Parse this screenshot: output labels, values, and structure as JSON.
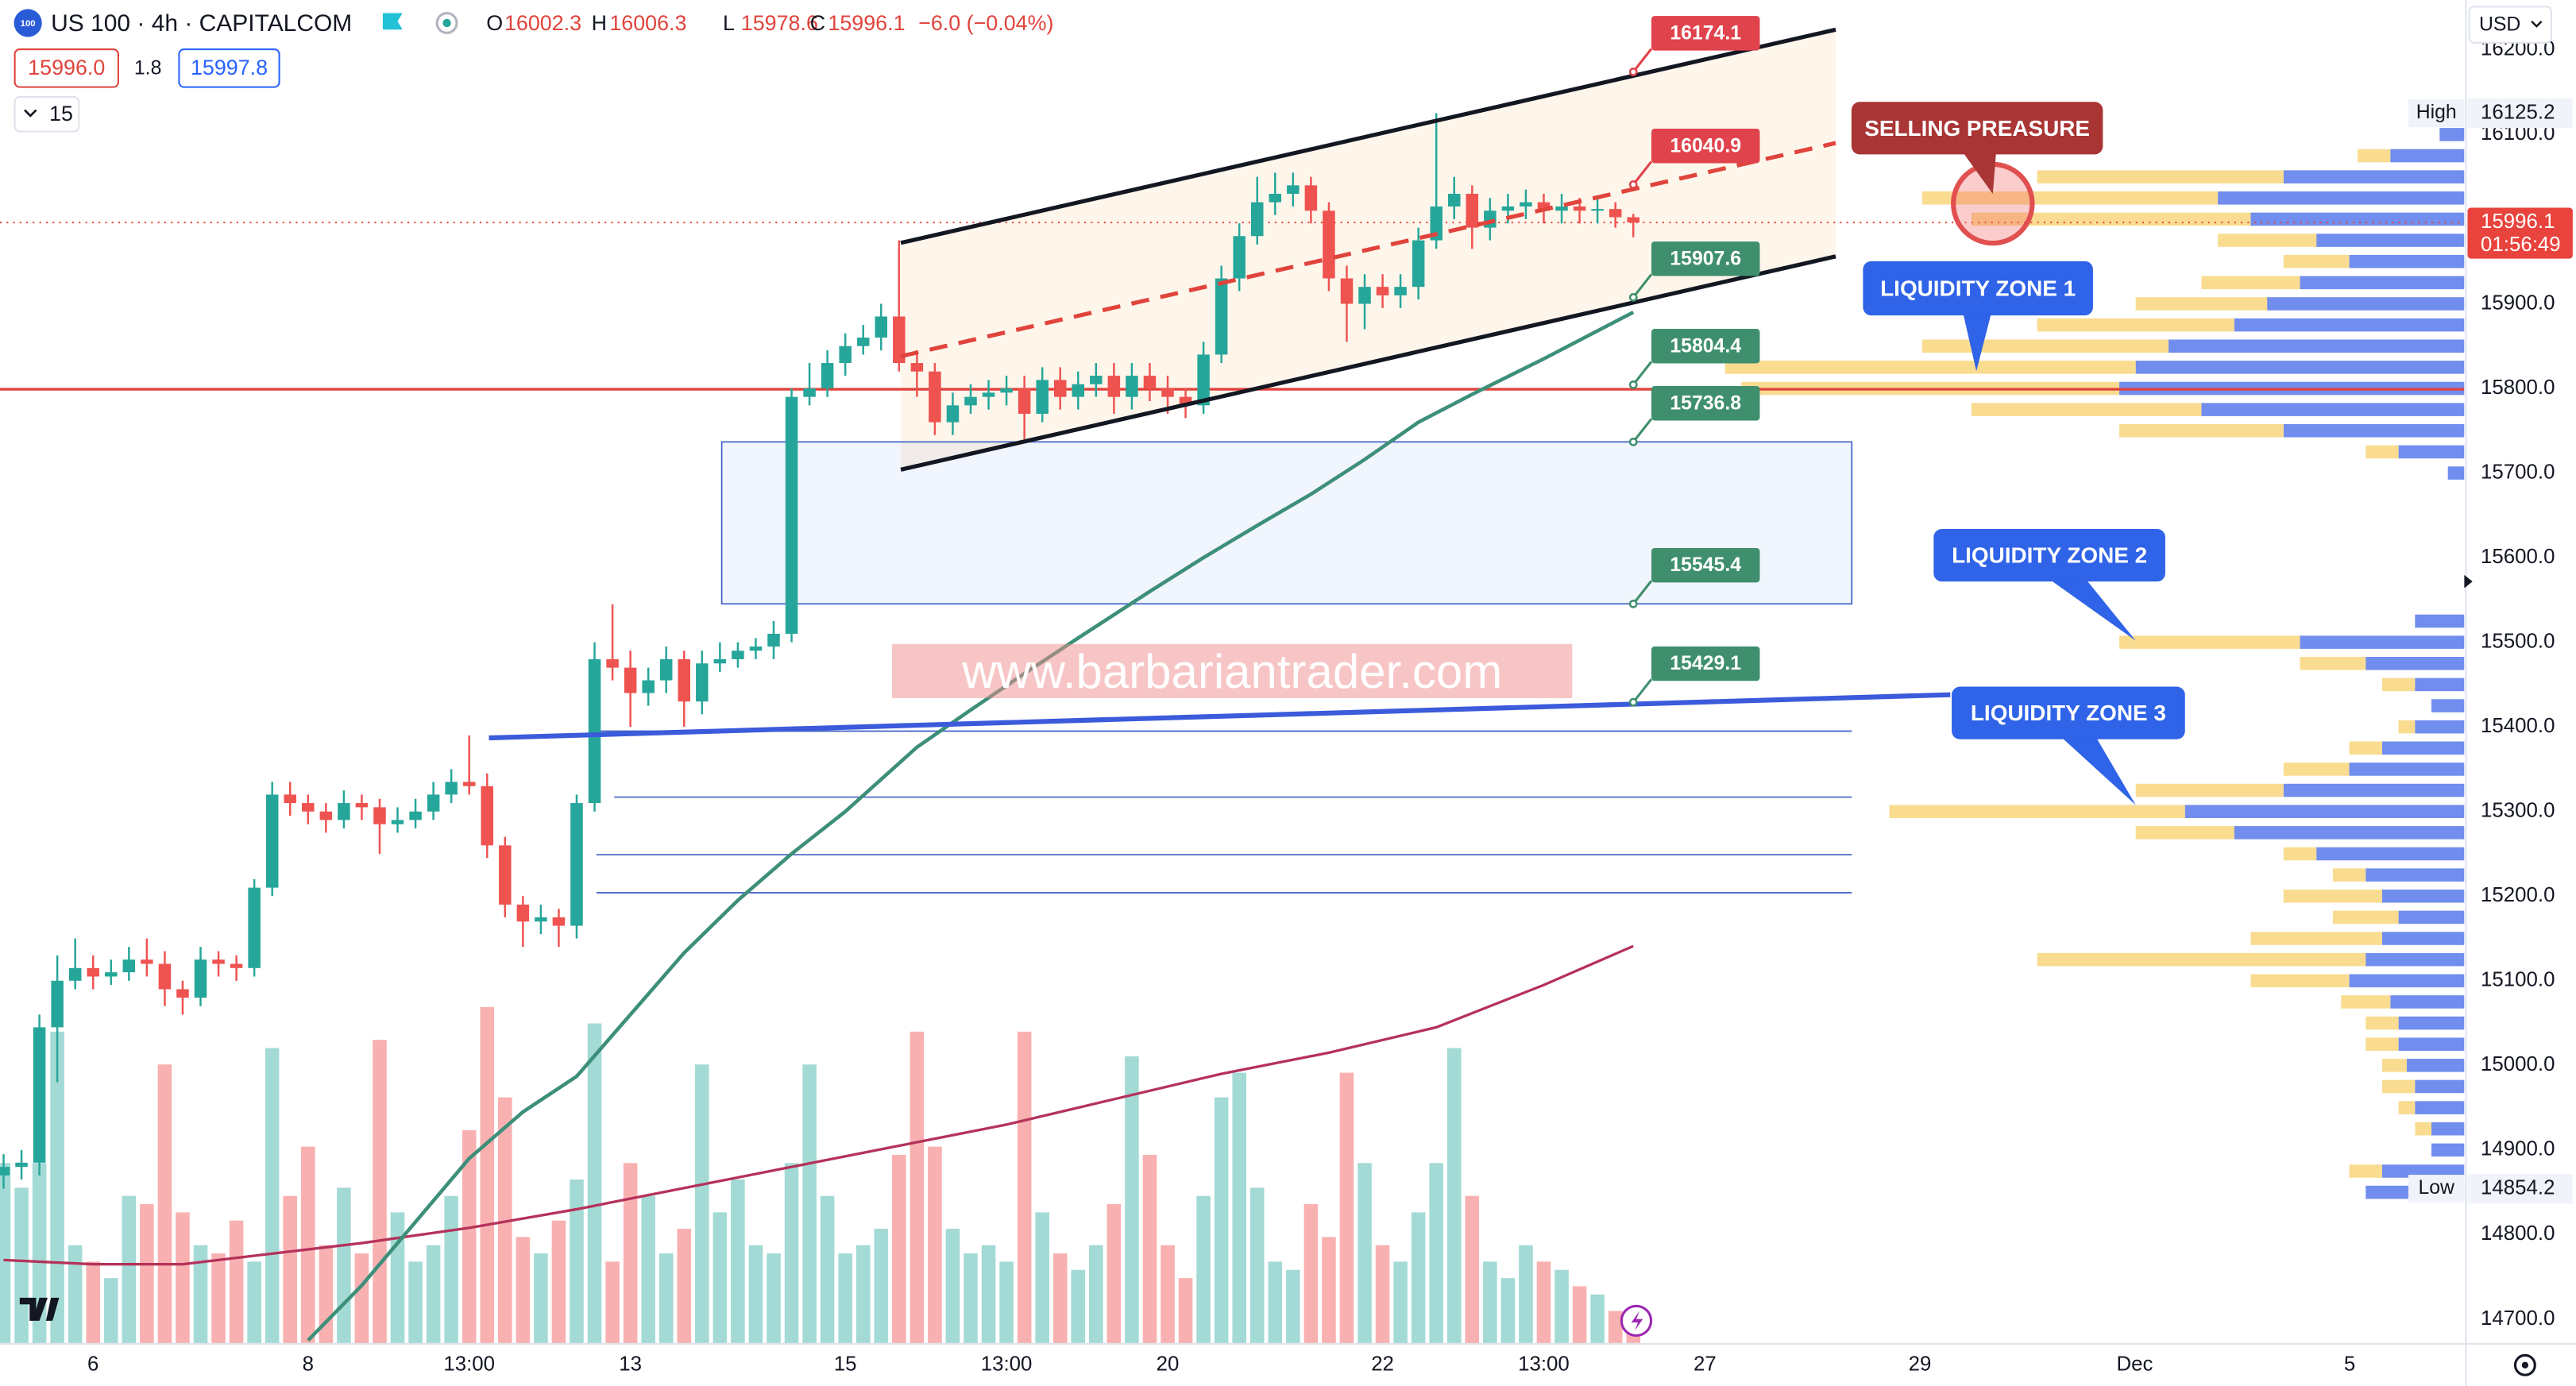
{
  "header": {
    "logo": "100",
    "symbol": "US 100 · 4h · CAPITALCOM",
    "ohlc": [
      {
        "key": "O",
        "value": "16002.3"
      },
      {
        "key": "H",
        "value": "16006.3"
      },
      {
        "key": "L",
        "value": "15978.6"
      },
      {
        "key": "C",
        "value": "15996.1"
      }
    ],
    "change": "−6.0 (−0.04%)",
    "bid": "15996.0",
    "spread": "1.8",
    "ask": "15997.8",
    "interval": "15"
  },
  "chart_data": {
    "type": "candlestick",
    "open": [
      14870,
      14880,
      14885,
      15045,
      15100,
      15115,
      15105,
      15110,
      15125,
      15120,
      15090,
      15080,
      15125,
      15120,
      15115,
      15210,
      15320,
      15310,
      15300,
      15290,
      15310,
      15305,
      15285,
      15290,
      15300,
      15320,
      15335,
      15330,
      15260,
      15190,
      15170,
      15175,
      15165,
      15310,
      15480,
      15470,
      15440,
      15455,
      15480,
      15430,
      15475,
      15480,
      15490,
      15495,
      15510,
      15790,
      15800,
      15830,
      15850,
      15860,
      15885,
      15830,
      15820,
      15760,
      15780,
      15790,
      15795,
      15800,
      15770,
      15810,
      15790,
      15805,
      15815,
      15790,
      15815,
      15800,
      15790,
      15780,
      15840,
      15930,
      15980,
      16020,
      16030,
      16040,
      16010,
      15930,
      15900,
      15920,
      15910,
      15920,
      15975,
      16015,
      16030,
      15990,
      16010,
      16015,
      16020,
      16010,
      16015,
      16010,
      16012,
      16002.3
    ],
    "high": [
      14895,
      14900,
      15060,
      15130,
      15150,
      15130,
      15125,
      15140,
      15150,
      15135,
      15100,
      15140,
      15135,
      15130,
      15220,
      15335,
      15335,
      15320,
      15310,
      15325,
      15320,
      15315,
      15305,
      15315,
      15335,
      15350,
      15390,
      15345,
      15270,
      15200,
      15190,
      15185,
      15320,
      15500,
      15545,
      15490,
      15470,
      15495,
      15490,
      15490,
      15500,
      15500,
      15505,
      15525,
      15800,
      15830,
      15845,
      15865,
      15875,
      15900,
      15975,
      15845,
      15830,
      15795,
      15805,
      15810,
      15815,
      15815,
      15825,
      15825,
      15820,
      15830,
      15830,
      15830,
      15830,
      15815,
      15800,
      15855,
      15945,
      15995,
      16050,
      16055,
      16055,
      16050,
      16020,
      15945,
      15935,
      15935,
      15935,
      15990,
      16125.2,
      16050,
      16040,
      16025,
      16030,
      16035,
      16030,
      16030,
      16025,
      16025,
      16020,
      16006.3
    ],
    "low": [
      14854.2,
      14865,
      14870,
      14980,
      15090,
      15090,
      15095,
      15100,
      15105,
      15070,
      15060,
      15070,
      15105,
      15100,
      15105,
      15200,
      15295,
      15285,
      15275,
      15280,
      15290,
      15250,
      15275,
      15280,
      15290,
      15310,
      15320,
      15245,
      15175,
      15140,
      15155,
      15140,
      15150,
      15300,
      15455,
      15400,
      15425,
      15440,
      15400,
      15415,
      15465,
      15470,
      15480,
      15480,
      15500,
      15780,
      15790,
      15815,
      15840,
      15845,
      15820,
      15790,
      15745,
      15745,
      15770,
      15775,
      15780,
      15740,
      15760,
      15775,
      15775,
      15790,
      15770,
      15775,
      15785,
      15770,
      15765,
      15770,
      15830,
      15915,
      15970,
      16005,
      16015,
      15995,
      15915,
      15855,
      15870,
      15895,
      15895,
      15905,
      15965,
      16000,
      15965,
      15975,
      15995,
      16000,
      15995,
      15995,
      15995,
      15995,
      15990,
      15978.6
    ],
    "close": [
      14880,
      14885,
      15045,
      15100,
      15115,
      15105,
      15110,
      15125,
      15120,
      15090,
      15080,
      15125,
      15120,
      15115,
      15210,
      15320,
      15310,
      15300,
      15290,
      15310,
      15305,
      15285,
      15290,
      15300,
      15320,
      15335,
      15330,
      15260,
      15190,
      15170,
      15175,
      15165,
      15310,
      15480,
      15470,
      15440,
      15455,
      15480,
      15430,
      15475,
      15480,
      15490,
      15495,
      15510,
      15790,
      15800,
      15830,
      15850,
      15860,
      15885,
      15830,
      15820,
      15760,
      15780,
      15790,
      15795,
      15800,
      15770,
      15810,
      15790,
      15805,
      15815,
      15790,
      15815,
      15800,
      15790,
      15780,
      15840,
      15930,
      15980,
      16020,
      16030,
      16040,
      16010,
      15930,
      15900,
      15920,
      15910,
      15920,
      15975,
      16015,
      16030,
      15990,
      16010,
      16015,
      16020,
      16010,
      16015,
      16010,
      16012,
      16002.3,
      15996.1
    ],
    "volume": [
      110,
      95,
      110,
      190,
      60,
      50,
      40,
      90,
      85,
      170,
      80,
      60,
      55,
      75,
      50,
      180,
      90,
      120,
      60,
      95,
      55,
      185,
      80,
      50,
      60,
      90,
      130,
      205,
      150,
      65,
      55,
      75,
      100,
      195,
      50,
      110,
      90,
      55,
      70,
      170,
      80,
      100,
      60,
      55,
      110,
      170,
      90,
      55,
      60,
      70,
      115,
      190,
      120,
      70,
      55,
      60,
      50,
      190,
      80,
      55,
      45,
      60,
      85,
      175,
      115,
      60,
      40,
      90,
      150,
      165,
      95,
      50,
      45,
      85,
      65,
      165,
      110,
      60,
      50,
      80,
      110,
      180,
      90,
      50,
      40,
      60,
      50,
      45,
      35,
      30,
      20,
      18
    ],
    "colors": {
      "up": "#26a69a",
      "down": "#ef5350"
    },
    "xlim": [
      -0.2,
      137.4
    ],
    "ylim": [
      14671,
      16259
    ],
    "xticks": [
      {
        "value": 5,
        "label": "6"
      },
      {
        "value": 17,
        "label": "8"
      },
      {
        "value": 26,
        "label": "13:00"
      },
      {
        "value": 35,
        "label": "13"
      },
      {
        "value": 47,
        "label": "15"
      },
      {
        "value": 56,
        "label": "13:00"
      },
      {
        "value": 65,
        "label": "20"
      },
      {
        "value": 77,
        "label": "22"
      },
      {
        "value": 86,
        "label": "13:00"
      },
      {
        "value": 95,
        "label": "27"
      },
      {
        "value": 107,
        "label": "29"
      },
      {
        "value": 119,
        "label": "Dec"
      },
      {
        "value": 131,
        "label": "5"
      }
    ],
    "yticks": [
      {
        "value": 14700,
        "label": "14700.0"
      },
      {
        "value": 14800,
        "label": "14800.0"
      },
      {
        "value": 14900,
        "label": "14900.0"
      },
      {
        "value": 15000,
        "label": "15000.0"
      },
      {
        "value": 15100,
        "label": "15100.0"
      },
      {
        "value": 15200,
        "label": "15200.0"
      },
      {
        "value": 15300,
        "label": "15300.0"
      },
      {
        "value": 15400,
        "label": "15400.0"
      },
      {
        "value": 15500,
        "label": "15500.0"
      },
      {
        "value": 15600,
        "label": "15600.0"
      },
      {
        "value": 15700,
        "label": "15700.0"
      },
      {
        "value": 15800,
        "label": "15800.0"
      },
      {
        "value": 15900,
        "label": "15900.0"
      },
      {
        "value": 16000,
        "label": "16000.0"
      },
      {
        "value": 16100,
        "label": "16100.0"
      },
      {
        "value": 16200,
        "label": "16200.0"
      }
    ],
    "currency": "USD",
    "ma_fast": {
      "color": "#3d8f7a",
      "x": [
        17,
        20,
        26,
        29,
        32,
        35,
        38,
        41,
        44,
        47,
        51,
        54,
        57,
        60,
        64,
        67,
        70,
        73,
        76,
        79,
        82,
        86,
        91
      ],
      "values": [
        14675,
        14740,
        14890,
        14945,
        14987,
        15060,
        15133,
        15195,
        15250,
        15300,
        15376,
        15420,
        15463,
        15505,
        15560,
        15600,
        15638,
        15675,
        15716,
        15760,
        15793,
        15835,
        15890
      ]
    },
    "ma_slow": {
      "color": "#b5325a",
      "x": [
        0,
        5,
        10,
        14,
        20,
        26,
        32,
        38,
        44,
        50,
        56,
        62,
        68,
        74,
        80,
        86,
        91
      ],
      "values": [
        14770,
        14765,
        14765,
        14775,
        14790,
        14808,
        14830,
        14855,
        14880,
        14905,
        14930,
        14960,
        14990,
        15015,
        15045,
        15095,
        15141
      ]
    },
    "drawings": {
      "channel": {
        "x": [
          50.1,
          102.3
        ],
        "upper": [
          15972,
          16224
        ],
        "mid": [
          15838,
          16090
        ],
        "lower": [
          15704,
          15956
        ]
      },
      "support_line": {
        "x": [
          27.1,
          108.7
        ],
        "values": [
          15387,
          15438
        ],
        "color": "#3b5bdb"
      },
      "red_level": {
        "value": 15799,
        "color": "#e0443c"
      },
      "zone": {
        "x": [
          40.1,
          103.2
        ],
        "values": [
          15736.8,
          15545.4
        ]
      },
      "levels": {
        "start": [
          33.1,
          34.1,
          33.1,
          33.1
        ],
        "end": 103.2,
        "values": [
          15395,
          15317,
          15249,
          15204
        ]
      }
    },
    "price_labels": [
      {
        "value": 16174.1,
        "color": "#e0434c"
      },
      {
        "value": 16040.9,
        "color": "#e0434c"
      },
      {
        "value": 15907.6,
        "color": "#3f8f6e"
      },
      {
        "value": 15804.4,
        "color": "#3f8f6e"
      },
      {
        "value": 15736.8,
        "color": "#3f8f6e"
      },
      {
        "value": 15545.4,
        "color": "#3f8f6e"
      },
      {
        "value": 15429.1,
        "color": "#3f8f6e"
      }
    ],
    "label_x": 91,
    "last_price": {
      "value": 15996.1,
      "countdown": "01:56:49",
      "color": "#e8433c"
    },
    "high_marker": {
      "text": "High",
      "value": 16125.2
    },
    "low_marker": {
      "text": "Low",
      "value": 14854.2
    },
    "annotations": [
      {
        "text": "SELLING PREASURE",
        "color": "#a93535"
      },
      {
        "text": "LIQUIDITY ZONE 1",
        "color": "#2f63e8"
      },
      {
        "text": "LIQUIDITY ZONE 2",
        "color": "#2f63e8"
      },
      {
        "text": "LIQUIDITY ZONE 3",
        "color": "#2f63e8"
      }
    ],
    "watermark": "www.barbariantrader.com",
    "volume_profile": {
      "prices": [
        16100,
        16075,
        16050,
        16025,
        16000,
        15975,
        15950,
        15925,
        15900,
        15875,
        15850,
        15825,
        15800,
        15775,
        15750,
        15725,
        15700,
        15525,
        15500,
        15475,
        15450,
        15425,
        15400,
        15375,
        15350,
        15325,
        15300,
        15275,
        15250,
        15225,
        15200,
        15175,
        15150,
        15125,
        15100,
        15075,
        15050,
        15025,
        15000,
        14975,
        14950,
        14925,
        14900,
        14875,
        14850
      ],
      "blue": [
        15,
        45,
        110,
        150,
        130,
        90,
        70,
        100,
        120,
        140,
        180,
        200,
        210,
        160,
        110,
        40,
        10,
        30,
        100,
        60,
        30,
        20,
        30,
        50,
        70,
        110,
        170,
        140,
        90,
        60,
        50,
        40,
        50,
        60,
        70,
        45,
        40,
        40,
        35,
        30,
        30,
        20,
        20,
        50,
        60
      ],
      "yellow": [
        0,
        20,
        150,
        180,
        170,
        60,
        40,
        60,
        80,
        120,
        150,
        250,
        230,
        140,
        100,
        20,
        0,
        0,
        110,
        40,
        20,
        0,
        10,
        20,
        40,
        90,
        180,
        60,
        20,
        20,
        60,
        40,
        80,
        200,
        60,
        30,
        20,
        20,
        15,
        20,
        10,
        10,
        0,
        20,
        0
      ]
    }
  }
}
